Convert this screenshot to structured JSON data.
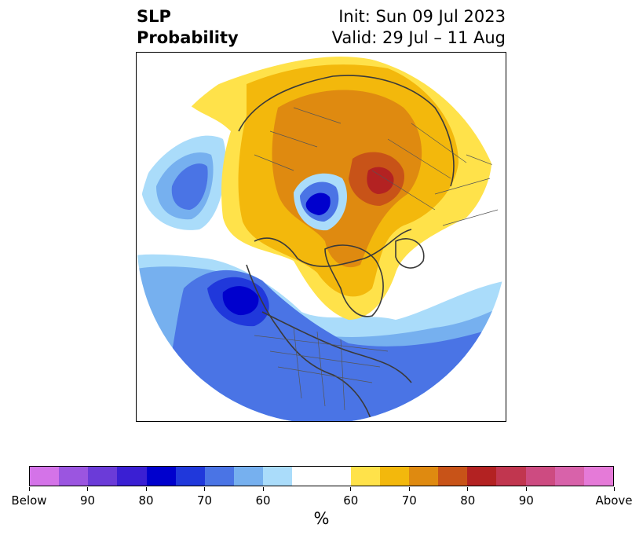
{
  "title": {
    "left_line1": "SLP",
    "left_line2": "Probability",
    "right_line1": "Init: Sun 09 Jul 2023",
    "right_line2": "Valid: 29 Jul – 11 Aug"
  },
  "colorbar": {
    "segments": [
      {
        "color": "#d473e8"
      },
      {
        "color": "#9b55e0"
      },
      {
        "color": "#6b3bd8"
      },
      {
        "color": "#3a1fd3"
      },
      {
        "color": "#0000cd"
      },
      {
        "color": "#2038db"
      },
      {
        "color": "#4a74e5"
      },
      {
        "color": "#76b0ef"
      },
      {
        "color": "#aadcfa"
      },
      {
        "color": "#ffffff",
        "wide": true
      },
      {
        "color": "#ffe24a"
      },
      {
        "color": "#f3b80c"
      },
      {
        "color": "#df8a10"
      },
      {
        "color": "#c85318"
      },
      {
        "color": "#b32222"
      },
      {
        "color": "#c1364f"
      },
      {
        "color": "#cd4b81"
      },
      {
        "color": "#d862aa"
      },
      {
        "color": "#e57ad8"
      }
    ],
    "tick_labels": [
      "Below",
      "90",
      "80",
      "70",
      "60",
      "60",
      "70",
      "80",
      "90",
      "Above"
    ],
    "unit_label": "%"
  },
  "map": {
    "projection": "north polar stereographic",
    "colors": {
      "light_blue": "#aadcfa",
      "mid_blue": "#76b0ef",
      "blue": "#4a74e5",
      "deep_blue": "#2038db",
      "darkest_blue": "#0000cd",
      "yellow": "#ffe24a",
      "gold": "#f3b80c",
      "orange": "#df8a10",
      "dark_orange": "#c85318",
      "red": "#b32222",
      "coast": "#3a3a3a",
      "border": "#555555"
    }
  }
}
